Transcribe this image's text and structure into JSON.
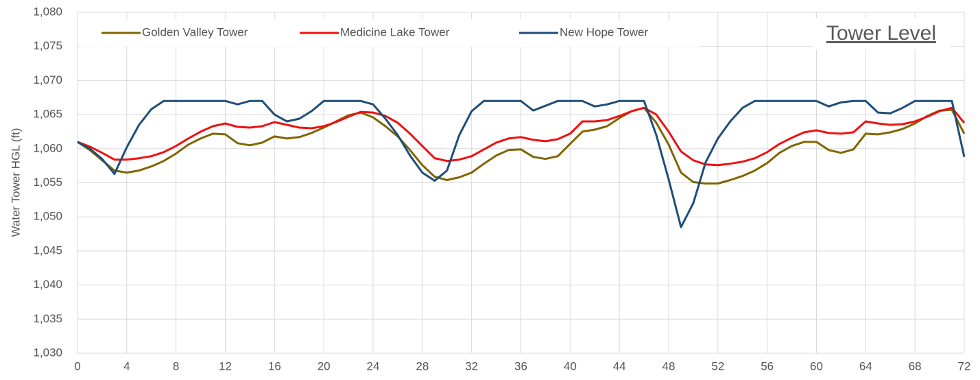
{
  "chart_data": {
    "type": "line",
    "title": "Tower Level",
    "y_label": "Water Tower HGL (ft)",
    "x": [
      0,
      1,
      2,
      3,
      4,
      5,
      6,
      7,
      8,
      9,
      10,
      11,
      12,
      13,
      14,
      15,
      16,
      17,
      18,
      19,
      20,
      21,
      22,
      23,
      24,
      25,
      26,
      27,
      28,
      29,
      30,
      31,
      32,
      33,
      34,
      35,
      36,
      37,
      38,
      39,
      40,
      41,
      42,
      43,
      44,
      45,
      46,
      47,
      48,
      49,
      50,
      51,
      52,
      53,
      54,
      55,
      56,
      57,
      58,
      59,
      60,
      61,
      62,
      63,
      64,
      65,
      66,
      67,
      68,
      69,
      70,
      71,
      72
    ],
    "series": [
      {
        "name": "Golden Valley Tower",
        "color": "#806600",
        "values": [
          1061,
          1059.8,
          1058.3,
          1056.8,
          1056.5,
          1056.8,
          1057.4,
          1058.2,
          1059.3,
          1060.6,
          1061.5,
          1062.2,
          1062.1,
          1060.8,
          1060.5,
          1060.9,
          1061.8,
          1061.5,
          1061.7,
          1062.3,
          1063.1,
          1064,
          1064.9,
          1065.3,
          1064.6,
          1063.3,
          1061.8,
          1059.8,
          1057.6,
          1055.9,
          1055.4,
          1055.8,
          1056.5,
          1057.8,
          1059,
          1059.8,
          1059.9,
          1058.8,
          1058.5,
          1058.9,
          1060.7,
          1062.5,
          1062.8,
          1063.3,
          1064.5,
          1065.5,
          1066,
          1063.8,
          1060.6,
          1056.5,
          1055.1,
          1054.9,
          1054.9,
          1055.4,
          1056,
          1056.8,
          1057.9,
          1059.4,
          1060.4,
          1061,
          1061,
          1059.8,
          1059.4,
          1059.9,
          1062.2,
          1062.1,
          1062.4,
          1062.9,
          1063.7,
          1064.8,
          1065.6,
          1065.7,
          1062.2
        ]
      },
      {
        "name": "Medicine Lake Tower",
        "color": "#ee1111",
        "values": [
          1061,
          1060.3,
          1059.4,
          1058.4,
          1058.4,
          1058.6,
          1058.9,
          1059.5,
          1060.4,
          1061.5,
          1062.5,
          1063.3,
          1063.7,
          1063.2,
          1063.1,
          1063.3,
          1063.9,
          1063.5,
          1063.1,
          1063,
          1063.3,
          1063.9,
          1064.7,
          1065.4,
          1065.3,
          1064.8,
          1063.8,
          1062.2,
          1060.4,
          1058.6,
          1058.2,
          1058.4,
          1058.9,
          1059.9,
          1060.9,
          1061.5,
          1061.7,
          1061.3,
          1061.1,
          1061.4,
          1062.2,
          1064,
          1064,
          1064.2,
          1064.8,
          1065.5,
          1066,
          1065,
          1062.5,
          1059.6,
          1058.3,
          1057.7,
          1057.6,
          1057.8,
          1058.1,
          1058.6,
          1059.5,
          1060.7,
          1061.6,
          1062.4,
          1062.7,
          1062.3,
          1062.2,
          1062.4,
          1064,
          1063.7,
          1063.5,
          1063.6,
          1064,
          1064.7,
          1065.5,
          1066,
          1063.8
        ]
      },
      {
        "name": "New Hope Tower",
        "color": "#1f4e79",
        "values": [
          1061,
          1060,
          1058.5,
          1056.3,
          1060.2,
          1063.5,
          1065.8,
          1067,
          1067,
          1067,
          1067,
          1067,
          1067,
          1066.5,
          1067,
          1067,
          1065,
          1064,
          1064.4,
          1065.5,
          1067,
          1067,
          1067,
          1067,
          1066.5,
          1064.4,
          1062,
          1059,
          1056.5,
          1055.3,
          1056.8,
          1062,
          1065.5,
          1067,
          1067,
          1067,
          1067,
          1065.6,
          1066.3,
          1067,
          1067,
          1067,
          1066.2,
          1066.5,
          1067,
          1067,
          1067,
          1062,
          1055.5,
          1048.5,
          1052,
          1058,
          1061.5,
          1064,
          1066,
          1067,
          1067,
          1067,
          1067,
          1067,
          1067,
          1066.2,
          1066.8,
          1067,
          1067,
          1065.3,
          1065.2,
          1066,
          1067,
          1067,
          1067,
          1067,
          1058.8
        ]
      }
    ],
    "xlim": [
      0,
      72
    ],
    "xticks": [
      0,
      4,
      8,
      12,
      16,
      20,
      24,
      28,
      32,
      36,
      40,
      44,
      48,
      52,
      56,
      60,
      64,
      68,
      72
    ],
    "ylim": [
      1030,
      1080
    ],
    "yticks": [
      {
        "value": 1030,
        "label": "1,030"
      },
      {
        "value": 1035,
        "label": "1,035"
      },
      {
        "value": 1040,
        "label": "1,040"
      },
      {
        "value": 1045,
        "label": "1,045"
      },
      {
        "value": 1050,
        "label": "1,050"
      },
      {
        "value": 1055,
        "label": "1,055"
      },
      {
        "value": 1060,
        "label": "1,060"
      },
      {
        "value": 1065,
        "label": "1,065"
      },
      {
        "value": 1070,
        "label": "1,070"
      },
      {
        "value": 1075,
        "label": "1,075"
      },
      {
        "value": 1080,
        "label": "1,080"
      }
    ],
    "grid": true,
    "legend": "top"
  }
}
